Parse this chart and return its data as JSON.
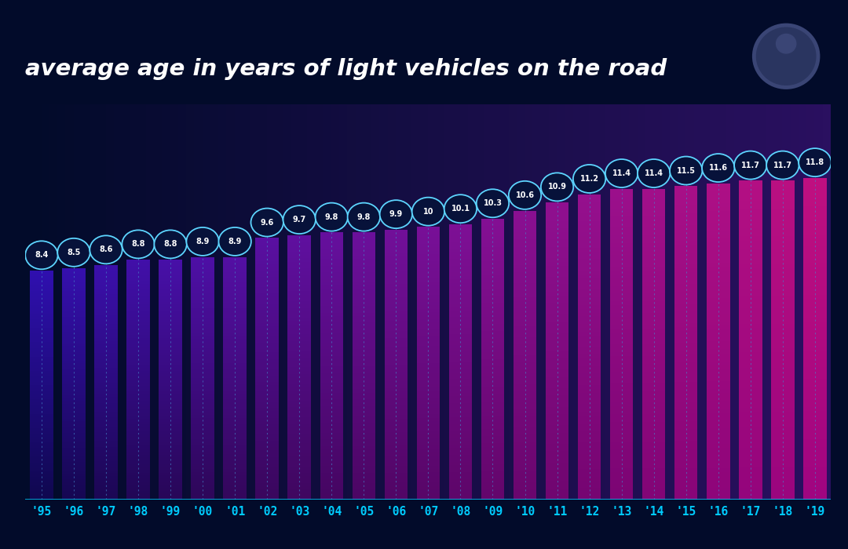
{
  "years": [
    "'95",
    "'96",
    "'97",
    "'98",
    "'99",
    "'00",
    "'01",
    "'02",
    "'03",
    "'04",
    "'05",
    "'06",
    "'07",
    "'08",
    "'09",
    "'10",
    "'11",
    "'12",
    "'13",
    "'14",
    "'15",
    "'16",
    "'17",
    "'18",
    "'19"
  ],
  "values": [
    8.4,
    8.5,
    8.6,
    8.8,
    8.8,
    8.9,
    8.9,
    9.6,
    9.7,
    9.8,
    9.8,
    9.9,
    10.0,
    10.1,
    10.3,
    10.6,
    10.9,
    11.2,
    11.4,
    11.4,
    11.5,
    11.6,
    11.7,
    11.7,
    11.8
  ],
  "title": "average age in years of light vehicles on the road",
  "bg_top_color": "#020B2A",
  "bg_bottom_color": "#020B2A",
  "bar_left_color": "#1B1464",
  "bar_right_color": "#7B2FBE",
  "text_color": "#FFFFFF",
  "year_label_color": "#00CCFF",
  "circle_edge_color": "#5DD5FF",
  "circle_face_color": "#07123A",
  "dashed_line_color": "#4488CC",
  "axis_line_color": "#00CCFF",
  "ylim_min": 0.0,
  "ylim_max": 14.5,
  "bar_bottom": 0.0
}
